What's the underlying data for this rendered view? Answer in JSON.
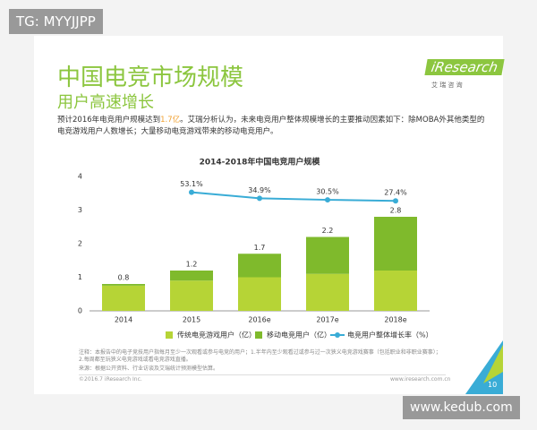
{
  "watermark_top": "TG: MYYJJPP",
  "watermark_bottom": "www.kedub.com",
  "slide": {
    "title": "中国电竞市场规模",
    "subtitle": "用户高速增长",
    "logo": "iResearch",
    "logo_sub": "艾 瑞 咨 询",
    "paragraph": [
      "预计2016年电竞用户规模达到",
      "1.7亿",
      "。艾瑞分析认为，未来电竞用户整体规模增长的主要推动因素如下：除MOBA外其他类型的电竞游戏用户人数增长；大量移动电竞游戏带来的移动电竞用户。"
    ],
    "notes": "注释：本报告中的电子竞技用户指每月至少一次观看或参与电竞的用户；1.半年内至少观看过或参与过一次狭义电竞游戏赛事（包括职业和非职业赛事）；2.每周都至玩狭义电竞游戏或看电竞游戏直播。",
    "source": "来源：根据公开资料、行业访谈及艾瑞统计预测模型估算。",
    "copyright": "©2016.7 iResearch Inc.",
    "website": "www.iresearch.com.cn",
    "page": "10"
  },
  "chart_data": {
    "type": "bar",
    "stacked": true,
    "title": "2014-2018年中国电竞用户规模",
    "categories": [
      "2014",
      "2015",
      "2016e",
      "2017e",
      "2018e"
    ],
    "series": [
      {
        "name": "传统电竞游戏用户（亿）",
        "color": "#b6d436",
        "values": [
          0.75,
          0.9,
          1.0,
          1.1,
          1.2
        ]
      },
      {
        "name": "移动电竞用户（亿）",
        "color": "#7fba2c",
        "values": [
          0.05,
          0.3,
          0.7,
          1.1,
          1.6
        ]
      },
      {
        "name": "电竞用户整体增长率（%）",
        "type": "line",
        "axis": "y2",
        "color": "#39acd6",
        "values": [
          null,
          53.1,
          34.9,
          30.5,
          27.4
        ],
        "value_labels": [
          null,
          "53.1%",
          "34.9%",
          "30.5%",
          "27.4%"
        ]
      }
    ],
    "totals": [
      0.8,
      1.2,
      1.7,
      2.2,
      2.8
    ],
    "ylim": [
      0,
      4
    ],
    "yticks": [
      0,
      1,
      2,
      3,
      4
    ],
    "y2lim": [
      -300,
      100
    ],
    "grid": false,
    "legend": "bottom"
  }
}
